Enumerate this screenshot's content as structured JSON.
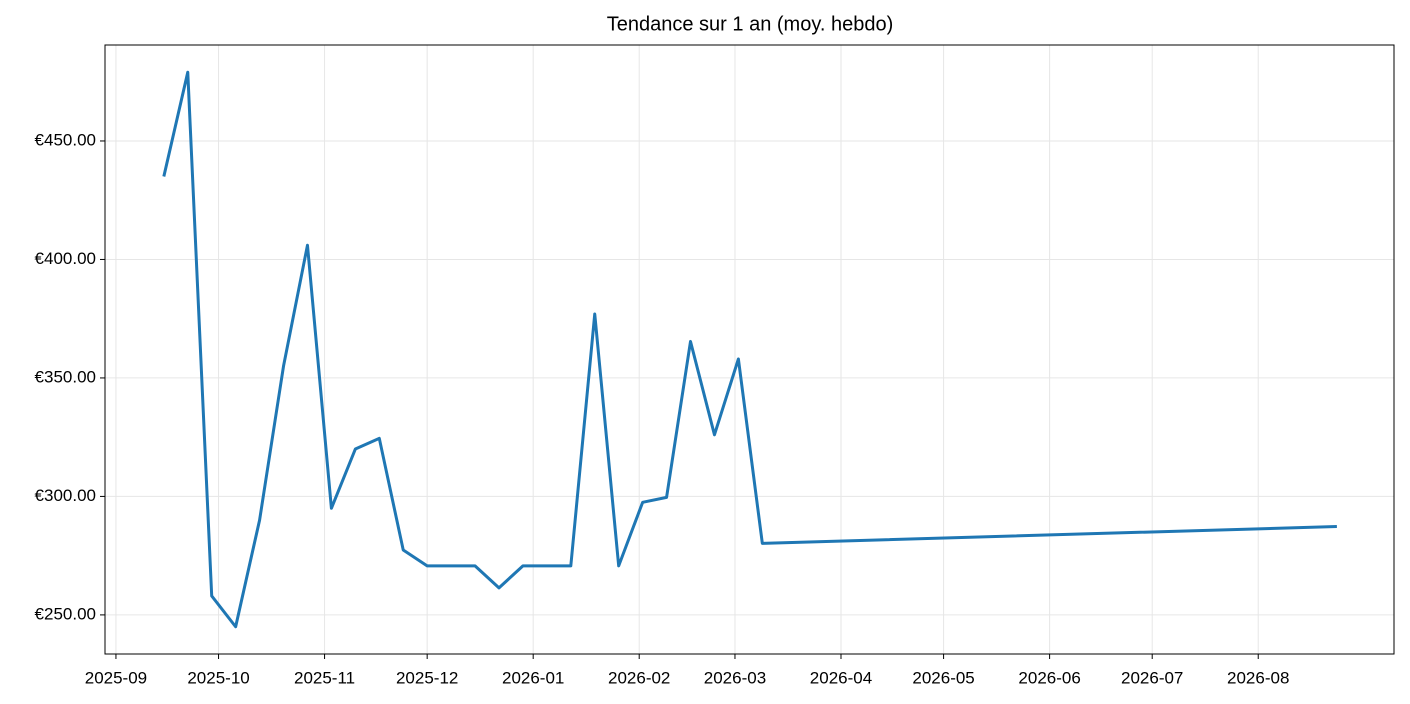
{
  "chart_data": {
    "type": "line",
    "title": "Tendance sur 1 an (moy. hebdo)",
    "x": [
      14,
      21,
      28,
      35,
      42,
      49,
      56,
      63,
      70,
      77,
      84,
      91,
      98,
      105,
      112,
      119,
      126,
      133,
      140,
      147,
      154,
      161,
      168,
      175,
      182,
      189,
      357
    ],
    "series": [
      {
        "color": "#1f77b4",
        "values": [
          435,
          479,
          258,
          245,
          290,
          355,
          406,
          295,
          320,
          324.5,
          277.4,
          270.7,
          270.7,
          270.7,
          261.4,
          270.7,
          270.7,
          270.7,
          377,
          270.7,
          297.5,
          299.6,
          365.4,
          326,
          358,
          280.2,
          287.3
        ]
      }
    ],
    "xlim": [
      -3.2,
      373.7
    ],
    "xticks": [
      {
        "value": 0,
        "label": "2025-09"
      },
      {
        "value": 30,
        "label": "2025-10"
      },
      {
        "value": 61,
        "label": "2025-11"
      },
      {
        "value": 91,
        "label": "2025-12"
      },
      {
        "value": 122,
        "label": "2026-01"
      },
      {
        "value": 153,
        "label": "2026-02"
      },
      {
        "value": 181,
        "label": "2026-03"
      },
      {
        "value": 212,
        "label": "2026-04"
      },
      {
        "value": 242,
        "label": "2026-05"
      },
      {
        "value": 273,
        "label": "2026-06"
      },
      {
        "value": 303,
        "label": "2026-07"
      },
      {
        "value": 334,
        "label": "2026-08"
      }
    ],
    "ylim": [
      233.5,
      490.5
    ],
    "yticks": [
      {
        "value": 250,
        "label": "€250.00"
      },
      {
        "value": 300,
        "label": "€300.00"
      },
      {
        "value": 350,
        "label": "€350.00"
      },
      {
        "value": 400,
        "label": "€400.00"
      },
      {
        "value": 450,
        "label": "€450.00"
      }
    ],
    "grid": true
  }
}
